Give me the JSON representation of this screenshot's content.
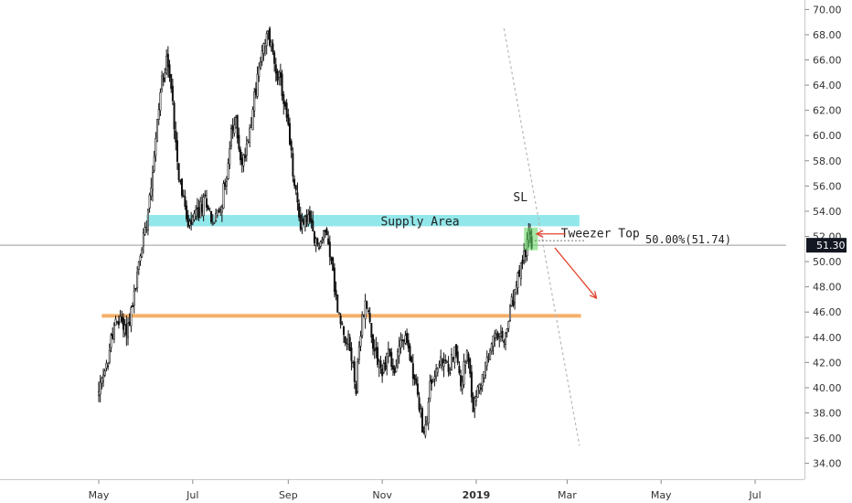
{
  "chart_data": {
    "type": "candlestick",
    "ylim": [
      33.5,
      70.5
    ],
    "y_ticks": [
      34,
      36,
      38,
      40,
      42,
      44,
      46,
      48,
      50,
      52,
      54,
      56,
      58,
      60,
      62,
      64,
      66,
      68,
      70
    ],
    "y_tick_labels": [
      "34.00",
      "36.00",
      "38.00",
      "40.00",
      "42.00",
      "44.00",
      "46.00",
      "48.00",
      "50.00",
      "52.00",
      "54.00",
      "56.00",
      "58.00",
      "60.00",
      "62.00",
      "64.00",
      "66.00",
      "68.00",
      "70.00"
    ],
    "x_labels": [
      {
        "text": "May",
        "t": 0,
        "bold": false
      },
      {
        "text": "Jul",
        "t": 61,
        "bold": false
      },
      {
        "text": "Sep",
        "t": 123,
        "bold": false
      },
      {
        "text": "Nov",
        "t": 184,
        "bold": false
      },
      {
        "text": "2019",
        "t": 245,
        "bold": true
      },
      {
        "text": "Mar",
        "t": 304,
        "bold": false
      },
      {
        "text": "May",
        "t": 365,
        "bold": false
      },
      {
        "text": "Jul",
        "t": 426,
        "bold": false
      }
    ],
    "anchors": [
      [
        0,
        39.5
      ],
      [
        5,
        41.5
      ],
      [
        9,
        44.5
      ],
      [
        14,
        45.5
      ],
      [
        18,
        44.5
      ],
      [
        22,
        46.5
      ],
      [
        27,
        50.5
      ],
      [
        31,
        53.5
      ],
      [
        36,
        58.5
      ],
      [
        40,
        63.5
      ],
      [
        44,
        66.5
      ],
      [
        48,
        62.5
      ],
      [
        52,
        57.0
      ],
      [
        55,
        55.0
      ],
      [
        58,
        52.5
      ],
      [
        62,
        53.5
      ],
      [
        65,
        54.0
      ],
      [
        70,
        55.0
      ],
      [
        74,
        53.0
      ],
      [
        78,
        54.0
      ],
      [
        82,
        56.0
      ],
      [
        86,
        60.0
      ],
      [
        89,
        61.0
      ],
      [
        93,
        57.5
      ],
      [
        97,
        60.0
      ],
      [
        101,
        63.0
      ],
      [
        105,
        66.0
      ],
      [
        110,
        68.0
      ],
      [
        114,
        66.0
      ],
      [
        119,
        63.5
      ],
      [
        123,
        60.5
      ],
      [
        127,
        56.0
      ],
      [
        131,
        53.0
      ],
      [
        136,
        53.5
      ],
      [
        140,
        51.5
      ],
      [
        144,
        51.5
      ],
      [
        148,
        52.5
      ],
      [
        151,
        50.0
      ],
      [
        154,
        47.0
      ],
      [
        157,
        45.0
      ],
      [
        161,
        44.0
      ],
      [
        164,
        42.5
      ],
      [
        167,
        40.0
      ],
      [
        171,
        45.5
      ],
      [
        174,
        47.0
      ],
      [
        177,
        44.0
      ],
      [
        181,
        42.5
      ],
      [
        184,
        41.0
      ],
      [
        188,
        43.0
      ],
      [
        192,
        41.0
      ],
      [
        196,
        44.0
      ],
      [
        200,
        43.5
      ],
      [
        204,
        41.5
      ],
      [
        208,
        38.5
      ],
      [
        211,
        36.0
      ],
      [
        215,
        40.0
      ],
      [
        219,
        41.5
      ],
      [
        223,
        42.0
      ],
      [
        227,
        41.5
      ],
      [
        231,
        43.0
      ],
      [
        235,
        40.5
      ],
      [
        239,
        42.5
      ],
      [
        243,
        38.5
      ],
      [
        247,
        40.0
      ],
      [
        251,
        41.5
      ],
      [
        255,
        43.5
      ],
      [
        259,
        44.0
      ],
      [
        263,
        43.5
      ],
      [
        267,
        46.0
      ],
      [
        271,
        48.0
      ],
      [
        275,
        50.0
      ],
      [
        279,
        52.0
      ],
      [
        281,
        51.4
      ]
    ],
    "current_price": 51.3,
    "current_price_label": "51.30",
    "supply_zone": {
      "low": 52.8,
      "high": 53.7,
      "t_start": 31,
      "t_end": 312
    },
    "support_level": {
      "value": 45.7,
      "t_start": 2,
      "t_end": 313
    },
    "annotations": {
      "supply_area": "Supply Area",
      "sl": "SL",
      "tweezer_top": "Tweezer Top",
      "fib_label": "50.00%(51.74)"
    },
    "trendline": {
      "t1": 263,
      "v1": 68.5,
      "t2": 312,
      "v2": 35.4
    },
    "colors": {
      "candle": "#111111",
      "supply_fill": "#7fe3e6",
      "support": "#f5b06a",
      "tweezer_box": "#5ad45a",
      "arrow": "#e2432a",
      "price_tag": "#131722",
      "trendline": "#b8b8b8"
    }
  }
}
